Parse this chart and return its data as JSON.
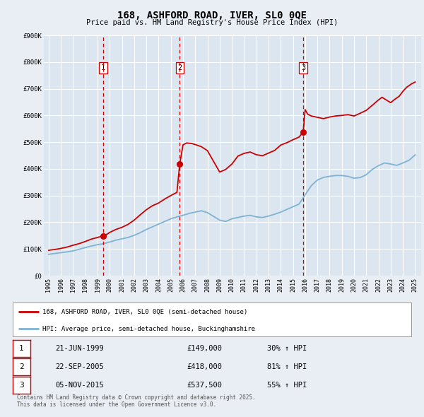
{
  "title": "168, ASHFORD ROAD, IVER, SL0 0QE",
  "subtitle": "Price paid vs. HM Land Registry's House Price Index (HPI)",
  "bg_color": "#e8eef4",
  "plot_bg_color": "#dce6f0",
  "grid_color": "#ffffff",
  "ylim": [
    0,
    900000
  ],
  "yticks": [
    0,
    100000,
    200000,
    300000,
    400000,
    500000,
    600000,
    700000,
    800000,
    900000
  ],
  "ytick_labels": [
    "£0",
    "£100K",
    "£200K",
    "£300K",
    "£400K",
    "£500K",
    "£600K",
    "£700K",
    "£800K",
    "£900K"
  ],
  "xlim_start": 1994.6,
  "xlim_end": 2025.5,
  "xtick_years": [
    1995,
    1996,
    1997,
    1998,
    1999,
    2000,
    2001,
    2002,
    2003,
    2004,
    2005,
    2006,
    2007,
    2008,
    2009,
    2010,
    2011,
    2012,
    2013,
    2014,
    2015,
    2016,
    2017,
    2018,
    2019,
    2020,
    2021,
    2022,
    2023,
    2024,
    2025
  ],
  "red_line_color": "#cc0000",
  "blue_line_color": "#7fb3d3",
  "dashed_vline_color": "#cc0000",
  "sale_points": [
    {
      "year": 1999.47,
      "price": 149000,
      "label": "1"
    },
    {
      "year": 2005.73,
      "price": 418000,
      "label": "2"
    },
    {
      "year": 2015.84,
      "price": 537500,
      "label": "3"
    }
  ],
  "legend_entries": [
    {
      "color": "#cc0000",
      "text": "168, ASHFORD ROAD, IVER, SL0 0QE (semi-detached house)"
    },
    {
      "color": "#7fb3d3",
      "text": "HPI: Average price, semi-detached house, Buckinghamshire"
    }
  ],
  "table_rows": [
    {
      "num": "1",
      "date": "21-JUN-1999",
      "price": "£149,000",
      "change": "30% ↑ HPI"
    },
    {
      "num": "2",
      "date": "22-SEP-2005",
      "price": "£418,000",
      "change": "81% ↑ HPI"
    },
    {
      "num": "3",
      "date": "05-NOV-2015",
      "price": "£537,500",
      "change": "55% ↑ HPI"
    }
  ],
  "footer": "Contains HM Land Registry data © Crown copyright and database right 2025.\nThis data is licensed under the Open Government Licence v3.0.",
  "red_hpi_data": {
    "x": [
      1995.0,
      1995.3,
      1995.5,
      1996.0,
      1996.5,
      1997.0,
      1997.5,
      1998.0,
      1998.5,
      1999.0,
      1999.47,
      1999.8,
      2000.0,
      2000.5,
      2001.0,
      2001.5,
      2002.0,
      2002.5,
      2003.0,
      2003.5,
      2004.0,
      2004.5,
      2005.0,
      2005.5,
      2005.73,
      2006.0,
      2006.3,
      2006.7,
      2007.0,
      2007.5,
      2008.0,
      2008.5,
      2009.0,
      2009.5,
      2010.0,
      2010.5,
      2011.0,
      2011.5,
      2012.0,
      2012.5,
      2013.0,
      2013.5,
      2014.0,
      2014.5,
      2015.0,
      2015.5,
      2015.84,
      2016.0,
      2016.2,
      2016.5,
      2017.0,
      2017.5,
      2018.0,
      2018.5,
      2019.0,
      2019.5,
      2020.0,
      2020.5,
      2021.0,
      2021.5,
      2022.0,
      2022.3,
      2022.5,
      2023.0,
      2023.3,
      2023.7,
      2024.0,
      2024.3,
      2024.7,
      2025.0
    ],
    "y": [
      95000,
      97000,
      98000,
      102000,
      107000,
      114000,
      120000,
      128000,
      137000,
      143000,
      149000,
      156000,
      162000,
      173000,
      181000,
      192000,
      208000,
      228000,
      247000,
      262000,
      272000,
      287000,
      300000,
      312000,
      418000,
      490000,
      497000,
      495000,
      491000,
      483000,
      468000,
      428000,
      388000,
      398000,
      418000,
      448000,
      458000,
      463000,
      453000,
      449000,
      459000,
      469000,
      489000,
      498000,
      509000,
      519000,
      537500,
      622000,
      605000,
      598000,
      593000,
      588000,
      594000,
      598000,
      600000,
      603000,
      598000,
      608000,
      619000,
      638000,
      658000,
      668000,
      662000,
      648000,
      659000,
      672000,
      690000,
      705000,
      718000,
      725000
    ]
  },
  "blue_hpi_data": {
    "x": [
      1995.0,
      1995.5,
      1996.0,
      1996.5,
      1997.0,
      1997.5,
      1998.0,
      1998.5,
      1999.0,
      1999.5,
      2000.0,
      2000.5,
      2001.0,
      2001.5,
      2002.0,
      2002.5,
      2003.0,
      2003.5,
      2004.0,
      2004.5,
      2005.0,
      2005.5,
      2006.0,
      2006.5,
      2007.0,
      2007.5,
      2008.0,
      2008.5,
      2009.0,
      2009.5,
      2010.0,
      2010.5,
      2011.0,
      2011.5,
      2012.0,
      2012.5,
      2013.0,
      2013.5,
      2014.0,
      2014.5,
      2015.0,
      2015.5,
      2016.0,
      2016.5,
      2017.0,
      2017.5,
      2018.0,
      2018.5,
      2019.0,
      2019.5,
      2020.0,
      2020.5,
      2021.0,
      2021.5,
      2022.0,
      2022.5,
      2023.0,
      2023.5,
      2024.0,
      2024.5,
      2025.0
    ],
    "y": [
      80000,
      83000,
      86000,
      89000,
      93000,
      99000,
      105000,
      111000,
      116000,
      120000,
      126000,
      133000,
      138000,
      143000,
      151000,
      161000,
      173000,
      183000,
      193000,
      203000,
      213000,
      220000,
      226000,
      233000,
      238000,
      243000,
      236000,
      222000,
      208000,
      203000,
      213000,
      218000,
      223000,
      226000,
      220000,
      218000,
      223000,
      230000,
      238000,
      248000,
      258000,
      268000,
      303000,
      337000,
      358000,
      368000,
      372000,
      375000,
      375000,
      372000,
      365000,
      367000,
      378000,
      398000,
      412000,
      422000,
      418000,
      413000,
      422000,
      432000,
      452000
    ]
  }
}
